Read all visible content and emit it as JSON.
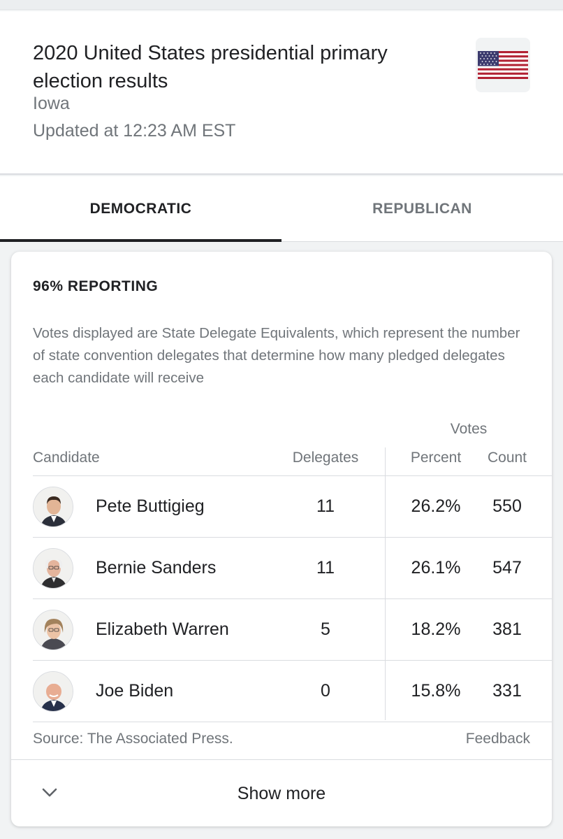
{
  "header": {
    "title": "2020 United States presidential primary election results",
    "state": "Iowa",
    "updated": "Updated at 12:23 AM EST",
    "flag_icon": "us-flag-icon"
  },
  "tabs": [
    {
      "label": "DEMOCRATIC",
      "active": true
    },
    {
      "label": "REPUBLICAN",
      "active": false
    }
  ],
  "results": {
    "reporting": "96% REPORTING",
    "description": "Votes displayed are State Delegate Equivalents, which represent the number of state convention delegates that determine how many pledged delegates each candidate will receive",
    "votes_header": "Votes",
    "columns": {
      "candidate": "Candidate",
      "delegates": "Delegates",
      "percent": "Percent",
      "count": "Count"
    },
    "rows": [
      {
        "name": "Pete Buttigieg",
        "delegates": "11",
        "percent": "26.2%",
        "count": "550",
        "avatar_icon": "candidate-photo"
      },
      {
        "name": "Bernie Sanders",
        "delegates": "11",
        "percent": "26.1%",
        "count": "547",
        "avatar_icon": "candidate-photo"
      },
      {
        "name": "Elizabeth Warren",
        "delegates": "5",
        "percent": "18.2%",
        "count": "381",
        "avatar_icon": "candidate-photo"
      },
      {
        "name": "Joe Biden",
        "delegates": "0",
        "percent": "15.8%",
        "count": "331",
        "avatar_icon": "candidate-photo"
      }
    ],
    "source": "Source: The Associated Press.",
    "feedback": "Feedback",
    "show_more": "Show more"
  },
  "colors": {
    "text_primary": "#202124",
    "text_secondary": "#70757a",
    "divider": "#dadce0",
    "flag_red": "#b22234",
    "flag_blue": "#3c3b6e"
  }
}
